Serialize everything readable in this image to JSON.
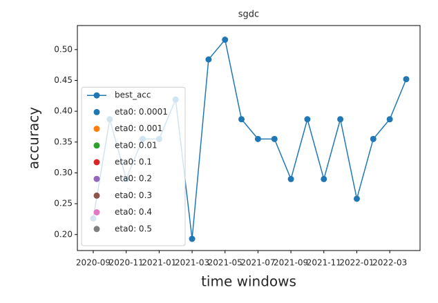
{
  "chart_data": {
    "type": "line",
    "title": "sgdc",
    "x_label": "time windows",
    "y_label": "accuracy",
    "categories": [
      "2020-09",
      null,
      "2020-11",
      null,
      "2021-01",
      null,
      "2021-03",
      null,
      "2021-05",
      null,
      "2021-07",
      null,
      "2021-09",
      null,
      "2021-11",
      null,
      "2022-01",
      null,
      "2022-03",
      null
    ],
    "series": [
      {
        "name": "best_acc",
        "color": "#1f77b4",
        "values": [
          0.226,
          0.387,
          0.29,
          0.355,
          0.355,
          0.419,
          0.193,
          0.484,
          0.516,
          0.387,
          0.355,
          0.355,
          0.29,
          0.387,
          0.29,
          0.387,
          0.258,
          0.355,
          0.387,
          0.452
        ]
      }
    ],
    "legend_entries": [
      {
        "name": "eta0: 0.0001",
        "color": "#1f77b4"
      },
      {
        "name": "eta0: 0.001",
        "color": "#ff7f0e"
      },
      {
        "name": "eta0: 0.01",
        "color": "#2ca02c"
      },
      {
        "name": "eta0: 0.1",
        "color": "#d62728"
      },
      {
        "name": "eta0: 0.2",
        "color": "#9467bd"
      },
      {
        "name": "eta0: 0.3",
        "color": "#8c564b"
      },
      {
        "name": "eta0: 0.4",
        "color": "#e377c2"
      },
      {
        "name": "eta0: 0.5",
        "color": "#7f7f7f"
      }
    ],
    "ylim": [
      0.174,
      0.539
    ],
    "yticks": [
      {
        "value": 0.2,
        "label": "0.20"
      },
      {
        "value": 0.25,
        "label": "0.25"
      },
      {
        "value": 0.3,
        "label": "0.30"
      },
      {
        "value": 0.35,
        "label": "0.35"
      },
      {
        "value": 0.4,
        "label": "0.40"
      },
      {
        "value": 0.45,
        "label": "0.45"
      },
      {
        "value": 0.5,
        "label": "0.50"
      }
    ],
    "legend": "lower left"
  }
}
